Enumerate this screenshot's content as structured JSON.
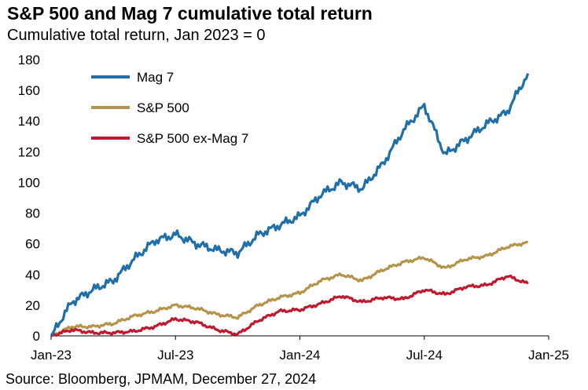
{
  "header": {
    "title": "S&P 500 and Mag 7 cumulative total return",
    "subtitle": "Cumulative total return, Jan 2023 = 0"
  },
  "footer": {
    "source": "Source: Bloomberg, JPMAM, December 27, 2024"
  },
  "chart_data": {
    "type": "line",
    "title": "S&P 500 and Mag 7 cumulative total return",
    "subtitle": "Cumulative total return, Jan 2023 = 0",
    "xlabel": "",
    "ylabel": "",
    "ylim": [
      0,
      180
    ],
    "yticks": [
      0,
      20,
      40,
      60,
      80,
      100,
      120,
      140,
      160,
      180
    ],
    "xticks": [
      "Jan-23",
      "Jul-23",
      "Jan-24",
      "Jul-24",
      "Jan-25"
    ],
    "x_range": [
      "2023-01",
      "2025-01"
    ],
    "grid": false,
    "legend_position": "top-left",
    "x": [
      "2023-01",
      "2023-02",
      "2023-03",
      "2023-04",
      "2023-05",
      "2023-06",
      "2023-07",
      "2023-08",
      "2023-09",
      "2023-10",
      "2023-11",
      "2023-12",
      "2024-01",
      "2024-02",
      "2024-03",
      "2024-04",
      "2024-05",
      "2024-06",
      "2024-07",
      "2024-08",
      "2024-09",
      "2024-10",
      "2024-11",
      "2024-12"
    ],
    "series": [
      {
        "name": "Mag 7",
        "color": "#1f6fa8",
        "values": [
          0,
          22,
          30,
          36,
          50,
          62,
          66,
          60,
          56,
          54,
          66,
          72,
          78,
          92,
          100,
          96,
          112,
          134,
          150,
          118,
          128,
          138,
          146,
          171
        ]
      },
      {
        "name": "S&P 500",
        "color": "#b5944a",
        "values": [
          0,
          6,
          6,
          8,
          13,
          16,
          20,
          18,
          14,
          12,
          20,
          25,
          28,
          36,
          40,
          36,
          43,
          48,
          51,
          44,
          50,
          52,
          58,
          61
        ]
      },
      {
        "name": "S&P 500 ex-Mag 7",
        "color": "#c0192f",
        "values": [
          0,
          4,
          2,
          2,
          3,
          6,
          11,
          9,
          4,
          1,
          10,
          16,
          17,
          21,
          26,
          22,
          25,
          24,
          30,
          27,
          32,
          33,
          39,
          34
        ]
      }
    ]
  }
}
